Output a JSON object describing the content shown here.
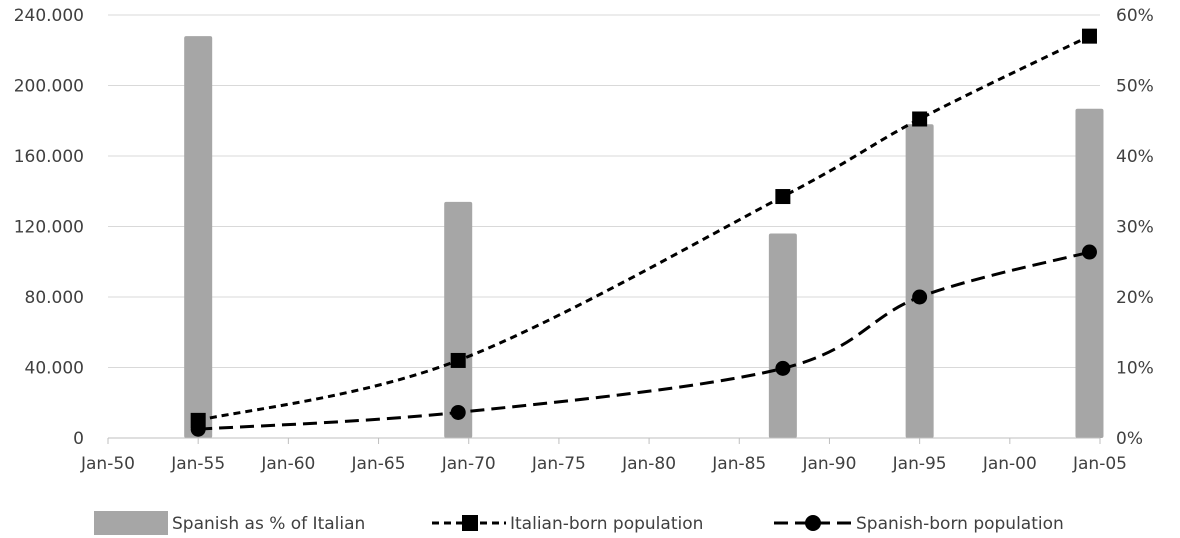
{
  "chart_data": {
    "type": "bar+line",
    "title": "",
    "x_ticks": [
      "Jan-50",
      "Jan-55",
      "Jan-60",
      "Jan-65",
      "Jan-70",
      "Jan-75",
      "Jan-80",
      "Jan-85",
      "Jan-90",
      "Jan-95",
      "Jan-00",
      "Jan-05"
    ],
    "x_range": [
      "1950-01",
      "2005-01"
    ],
    "y_left": {
      "range": [
        0,
        240000
      ],
      "ticks": [
        "0",
        "40.000",
        "80.000",
        "120.000",
        "160.000",
        "200.000",
        "240.000"
      ]
    },
    "y_right": {
      "range": [
        0,
        0.6
      ],
      "ticks": [
        "0%",
        "10%",
        "20%",
        "30%",
        "40%",
        "50%",
        "60%"
      ]
    },
    "gridlines": true,
    "legend_position": "bottom",
    "bar_series": {
      "name": "Spanish as % of Italian",
      "color": "#a6a6a6",
      "axis": "right",
      "x": [
        "1955-01",
        "1969-06",
        "1987-06",
        "1995-01",
        "2004-06"
      ],
      "values": [
        0.57,
        0.335,
        0.29,
        0.445,
        0.467
      ]
    },
    "line_series": [
      {
        "name": "Italian-born population",
        "color": "#000000",
        "marker": "square",
        "dash": "short",
        "axis": "left",
        "x": [
          "1955-01",
          "1969-06",
          "1987-06",
          "1995-01",
          "2004-06"
        ],
        "values": [
          10000,
          44000,
          137000,
          181000,
          228000
        ]
      },
      {
        "name": "Spanish-born population",
        "color": "#000000",
        "marker": "circle",
        "dash": "long",
        "axis": "left",
        "x": [
          "1955-01",
          "1969-06",
          "1987-06",
          "1995-01",
          "2004-06"
        ],
        "values": [
          5000,
          14500,
          39500,
          80000,
          105500
        ]
      }
    ]
  },
  "legend": {
    "bar_label": "Spanish as % of Italian",
    "line1_label": "Italian-born population",
    "line2_label": "Spanish-born population"
  }
}
